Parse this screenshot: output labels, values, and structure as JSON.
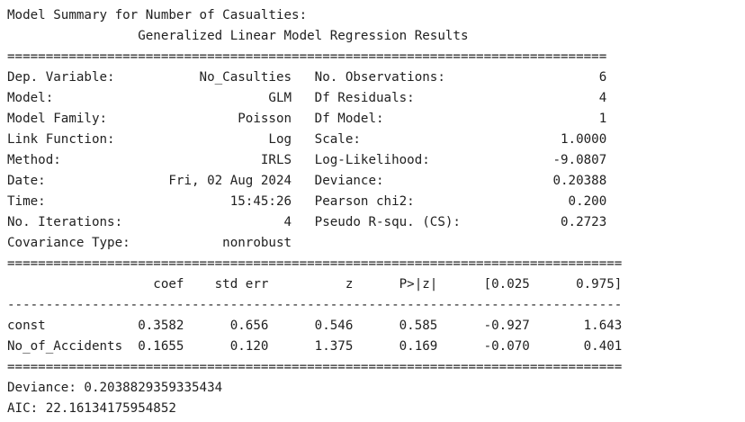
{
  "output_lines": [
    "Model Summary for Number of Casualties:",
    "                 Generalized Linear Model Regression Results",
    "==============================================================================",
    "Dep. Variable:           No_Casulties   No. Observations:                    6",
    "Model:                            GLM   Df Residuals:                        4",
    "Model Family:                 Poisson   Df Model:                            1",
    "Link Function:                    Log   Scale:                          1.0000",
    "Method:                          IRLS   Log-Likelihood:                -9.0807",
    "Date:                Fri, 02 Aug 2024   Deviance:                      0.20388",
    "Time:                        15:45:26   Pearson chi2:                    0.200",
    "No. Iterations:                     4   Pseudo R-squ. (CS):             0.2723",
    "Covariance Type:            nonrobust",
    "================================================================================",
    "                   coef    std err          z      P>|z|      [0.025      0.975]",
    "--------------------------------------------------------------------------------",
    "const            0.3582      0.656      0.546      0.585      -0.927       1.643",
    "No_of_Accidents  0.1655      0.120      1.375      0.169      -0.070       0.401",
    "================================================================================",
    "Deviance: 0.2038829359335434",
    "AIC: 22.16134175954852"
  ]
}
